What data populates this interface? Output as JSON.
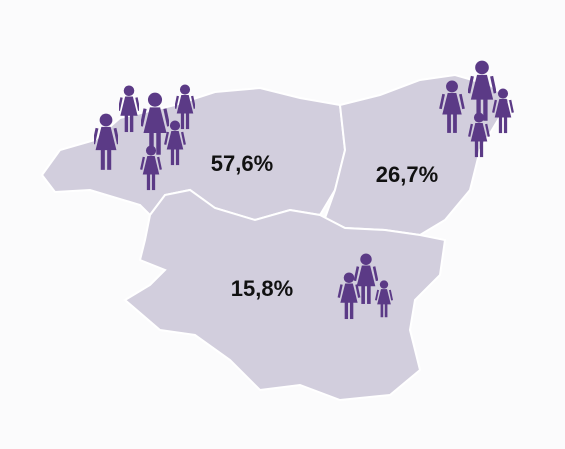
{
  "regions": [
    {
      "label": "57,6%"
    },
    {
      "label": "26,7%"
    },
    {
      "label": "15,8%"
    }
  ]
}
